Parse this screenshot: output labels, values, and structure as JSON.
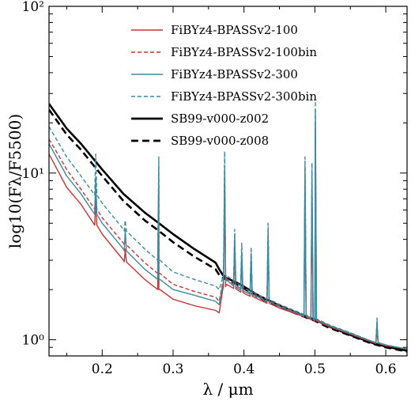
{
  "chart_data": {
    "type": "line",
    "xlabel": "λ / μm",
    "ylabel": "log10(Fλ/F5500)",
    "xlim": [
      0.125,
      0.63
    ],
    "ylim": [
      0.8,
      100
    ],
    "yscale": "log",
    "xticks": [
      0.2,
      0.3,
      0.4,
      0.5,
      0.6
    ],
    "xtick_labels": [
      "0.2",
      "0.3",
      "0.4",
      "0.5",
      "0.6"
    ],
    "yticks": [
      1,
      10,
      100
    ],
    "ytick_labels": [
      "10⁰",
      "10¹",
      "10²"
    ],
    "grid": false,
    "legend_position": "top-right",
    "series": [
      {
        "name": "FiBYz4-BPASSv2-100",
        "color": "#cc3333",
        "dash": "solid",
        "x": [
          0.125,
          0.15,
          0.17,
          0.2,
          0.23,
          0.26,
          0.28,
          0.3,
          0.33,
          0.36,
          0.365,
          0.37,
          0.375,
          0.38,
          0.39,
          0.4,
          0.42,
          0.45,
          0.48,
          0.5,
          0.52,
          0.55,
          0.58,
          0.6,
          0.63
        ],
        "y": [
          13,
          8.2,
          6.5,
          4.3,
          3.0,
          2.3,
          2.0,
          1.75,
          1.6,
          1.5,
          1.45,
          2.0,
          2.15,
          2.1,
          2.0,
          1.9,
          1.75,
          1.55,
          1.4,
          1.3,
          1.2,
          1.08,
          0.97,
          0.92,
          0.88
        ]
      },
      {
        "name": "FiBYz4-BPASSv2-100bin",
        "color": "#cc3333",
        "dash": "dashed",
        "x": [
          0.125,
          0.15,
          0.17,
          0.2,
          0.23,
          0.26,
          0.28,
          0.3,
          0.33,
          0.36,
          0.365,
          0.37,
          0.375,
          0.38,
          0.39,
          0.4,
          0.42,
          0.45,
          0.48,
          0.5,
          0.52,
          0.55,
          0.58,
          0.6,
          0.63
        ],
        "y": [
          16,
          10.5,
          8.0,
          5.4,
          3.8,
          2.9,
          2.5,
          2.15,
          1.95,
          1.8,
          1.7,
          2.2,
          2.35,
          2.25,
          2.1,
          2.0,
          1.82,
          1.6,
          1.43,
          1.33,
          1.22,
          1.1,
          0.98,
          0.93,
          0.88
        ]
      },
      {
        "name": "FiBYz4-BPASSv2-300",
        "color": "#3a8aa0",
        "dash": "solid",
        "x": [
          0.125,
          0.15,
          0.17,
          0.2,
          0.23,
          0.26,
          0.28,
          0.3,
          0.33,
          0.36,
          0.365,
          0.37,
          0.375,
          0.38,
          0.39,
          0.4,
          0.42,
          0.45,
          0.48,
          0.5,
          0.52,
          0.55,
          0.58,
          0.6,
          0.63
        ],
        "y": [
          15,
          9.6,
          7.5,
          5.0,
          3.5,
          2.65,
          2.3,
          2.0,
          1.85,
          1.7,
          1.62,
          2.15,
          2.3,
          2.2,
          2.05,
          1.95,
          1.8,
          1.58,
          1.42,
          1.32,
          1.22,
          1.09,
          0.98,
          0.93,
          0.88
        ]
      },
      {
        "name": "FiBYz4-BPASSv2-300bin",
        "color": "#3a8aa0",
        "dash": "dashed",
        "x": [
          0.125,
          0.15,
          0.17,
          0.2,
          0.23,
          0.26,
          0.28,
          0.3,
          0.33,
          0.36,
          0.365,
          0.37,
          0.375,
          0.38,
          0.39,
          0.4,
          0.42,
          0.45,
          0.48,
          0.5,
          0.52,
          0.55,
          0.58,
          0.6,
          0.63
        ],
        "y": [
          19,
          12.5,
          9.6,
          6.6,
          4.6,
          3.5,
          3.0,
          2.55,
          2.3,
          2.1,
          2.0,
          2.35,
          2.45,
          2.35,
          2.2,
          2.05,
          1.86,
          1.63,
          1.45,
          1.34,
          1.23,
          1.1,
          0.98,
          0.93,
          0.88
        ]
      },
      {
        "name": "SB99-v000-z002",
        "color": "#000000",
        "dash": "solid",
        "x": [
          0.125,
          0.15,
          0.17,
          0.2,
          0.23,
          0.26,
          0.28,
          0.3,
          0.33,
          0.36,
          0.365,
          0.37,
          0.375,
          0.38,
          0.39,
          0.4,
          0.42,
          0.45,
          0.48,
          0.5,
          0.52,
          0.55,
          0.58,
          0.6,
          0.63
        ],
        "y": [
          26,
          18.5,
          15.0,
          10.5,
          7.5,
          5.8,
          5.0,
          4.3,
          3.5,
          2.9,
          2.65,
          2.45,
          2.35,
          2.3,
          2.2,
          2.08,
          1.85,
          1.6,
          1.42,
          1.32,
          1.2,
          1.07,
          0.96,
          0.91,
          0.86
        ]
      },
      {
        "name": "SB99-v000-z008",
        "color": "#000000",
        "dash": "dashed",
        "x": [
          0.125,
          0.15,
          0.17,
          0.2,
          0.23,
          0.26,
          0.28,
          0.3,
          0.33,
          0.36,
          0.365,
          0.37,
          0.375,
          0.38,
          0.39,
          0.4,
          0.42,
          0.45,
          0.48,
          0.5,
          0.52,
          0.55,
          0.58,
          0.6,
          0.63
        ],
        "y": [
          24,
          17.0,
          13.8,
          9.6,
          6.8,
          5.2,
          4.5,
          3.85,
          3.15,
          2.65,
          2.45,
          2.35,
          2.3,
          2.25,
          2.15,
          2.03,
          1.8,
          1.57,
          1.4,
          1.3,
          1.18,
          1.06,
          0.95,
          0.9,
          0.85
        ]
      }
    ],
    "emission_lines": [
      {
        "x": 0.1909,
        "peaks": [
          7.0,
          8.0,
          9.5,
          13
        ]
      },
      {
        "x": 0.2326,
        "peaks": [
          3.5,
          3.9,
          4.6,
          5.2
        ]
      },
      {
        "x": 0.2798,
        "peaks": [
          8.5,
          9.5,
          11.0,
          12.5
        ]
      },
      {
        "x": 0.3727,
        "peaks": [
          8.0,
          9.0,
          11.0,
          13.5
        ]
      },
      {
        "x": 0.3869,
        "peaks": [
          3.6,
          3.8,
          4.2,
          4.6
        ]
      },
      {
        "x": 0.3968,
        "peaks": [
          3.0,
          3.2,
          3.4,
          3.8
        ]
      },
      {
        "x": 0.4101,
        "peaks": [
          3.0,
          3.1,
          3.3,
          3.6
        ]
      },
      {
        "x": 0.434,
        "peaks": [
          4.0,
          4.2,
          4.6,
          5.0
        ]
      },
      {
        "x": 0.4861,
        "peaks": [
          8.5,
          9.5,
          11.0,
          12.5
        ]
      },
      {
        "x": 0.4959,
        "peaks": [
          7.5,
          8.5,
          10.0,
          11.5
        ]
      },
      {
        "x": 0.5007,
        "peaks": [
          18,
          20,
          24,
          27
        ]
      },
      {
        "x": 0.5876,
        "peaks": [
          1.2,
          1.25,
          1.3,
          1.35
        ]
      }
    ]
  }
}
